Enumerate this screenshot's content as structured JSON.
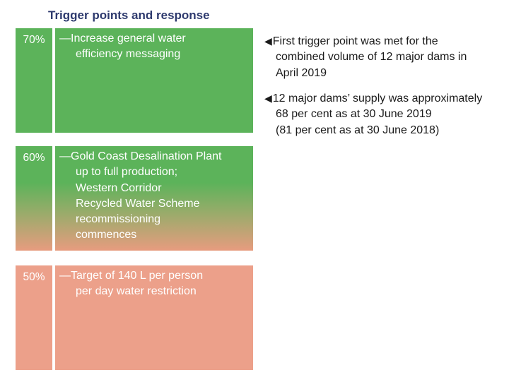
{
  "title": "Trigger points and response",
  "tiers": [
    {
      "percent": "70%",
      "lines": [
        "—Increase general water",
        "efficiency messaging"
      ],
      "color": "#5cb35a"
    },
    {
      "percent": "60%",
      "lines": [
        "—Gold Coast Desalination Plant",
        "up to full production;",
        "Western Corridor",
        "Recycled Water Scheme",
        "recommissioning",
        "commences"
      ],
      "color_top": "#5cb35a",
      "color_bottom": "#e79c7f"
    },
    {
      "percent": "50%",
      "lines": [
        "—Target of 140 L per person",
        "per day water restriction"
      ],
      "color": "#eca08a"
    }
  ],
  "notes": [
    {
      "icon": "left-triangle-arrow-icon",
      "lines": [
        "First trigger point was met for the",
        "combined volume of 12 major dams in",
        "April 2019"
      ]
    },
    {
      "icon": "left-triangle-arrow-icon",
      "lines": [
        "12 major dams’ supply was approximately",
        "68 per cent as at 30 June 2019",
        "(81 per cent as at 30 June 2018)"
      ]
    }
  ],
  "colors": {
    "title": "#2e3a6e",
    "text_on_box": "#ffffff",
    "note_text": "#1a1a1a"
  }
}
